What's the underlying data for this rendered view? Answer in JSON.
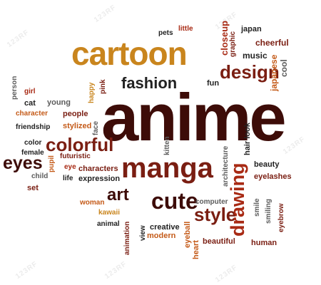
{
  "watermark": "123RF",
  "colors": {
    "dark": "#3d0c08",
    "darkred": "#7a1e12",
    "red": "#a82a14",
    "orange": "#c45a18",
    "gold": "#c9851d",
    "gray": "#5c5c5c",
    "black": "#222222"
  },
  "words": [
    {
      "text": "anime",
      "color": "dark"
    },
    {
      "text": "cartoon",
      "color": "gold"
    },
    {
      "text": "manga",
      "color": "darkred"
    },
    {
      "text": "design",
      "color": "darkred"
    },
    {
      "text": "fashion",
      "color": "black"
    },
    {
      "text": "cute",
      "color": "dark"
    },
    {
      "text": "art",
      "color": "dark"
    },
    {
      "text": "style",
      "color": "darkred"
    },
    {
      "text": "drawing",
      "color": "red"
    },
    {
      "text": "colorful",
      "color": "darkred"
    },
    {
      "text": "eyes",
      "color": "dark"
    },
    {
      "text": "pets",
      "color": "black"
    },
    {
      "text": "little",
      "color": "red"
    },
    {
      "text": "closeup",
      "color": "red"
    },
    {
      "text": "graphic",
      "color": "darkred"
    },
    {
      "text": "japan",
      "color": "black"
    },
    {
      "text": "cheerful",
      "color": "darkred"
    },
    {
      "text": "music",
      "color": "black"
    },
    {
      "text": "japanese",
      "color": "orange"
    },
    {
      "text": "cool",
      "color": "gray"
    },
    {
      "text": "pink",
      "color": "darkred"
    },
    {
      "text": "happy",
      "color": "gold"
    },
    {
      "text": "fun",
      "color": "black"
    },
    {
      "text": "person",
      "color": "gray"
    },
    {
      "text": "girl",
      "color": "red"
    },
    {
      "text": "cat",
      "color": "black"
    },
    {
      "text": "young",
      "color": "gray"
    },
    {
      "text": "character",
      "color": "orange"
    },
    {
      "text": "people",
      "color": "darkred"
    },
    {
      "text": "stylized",
      "color": "orange"
    },
    {
      "text": "face",
      "color": "gray"
    },
    {
      "text": "friendship",
      "color": "black"
    },
    {
      "text": "color",
      "color": "black"
    },
    {
      "text": "female",
      "color": "black"
    },
    {
      "text": "pupil",
      "color": "orange"
    },
    {
      "text": "futuristic",
      "color": "darkred"
    },
    {
      "text": "eye",
      "color": "red"
    },
    {
      "text": "characters",
      "color": "darkred"
    },
    {
      "text": "child",
      "color": "gray"
    },
    {
      "text": "life",
      "color": "black"
    },
    {
      "text": "expression",
      "color": "black"
    },
    {
      "text": "set",
      "color": "darkred"
    },
    {
      "text": "kitten",
      "color": "gray"
    },
    {
      "text": "hair look",
      "color": "black"
    },
    {
      "text": "architecture",
      "color": "gray"
    },
    {
      "text": "beauty",
      "color": "black"
    },
    {
      "text": "eyelashes",
      "color": "darkred"
    },
    {
      "text": "woman",
      "color": "orange"
    },
    {
      "text": "kawaii",
      "color": "gold"
    },
    {
      "text": "animal",
      "color": "black"
    },
    {
      "text": "animation",
      "color": "darkred"
    },
    {
      "text": "view",
      "color": "black"
    },
    {
      "text": "creative",
      "color": "black"
    },
    {
      "text": "modern",
      "color": "orange"
    },
    {
      "text": "computer",
      "color": "gray"
    },
    {
      "text": "eyeball",
      "color": "orange"
    },
    {
      "text": "heart",
      "color": "orange"
    },
    {
      "text": "beautiful",
      "color": "darkred"
    },
    {
      "text": "smile",
      "color": "gray"
    },
    {
      "text": "smiling",
      "color": "gray"
    },
    {
      "text": "eyebrow",
      "color": "darkred"
    },
    {
      "text": "human",
      "color": "darkred"
    }
  ]
}
